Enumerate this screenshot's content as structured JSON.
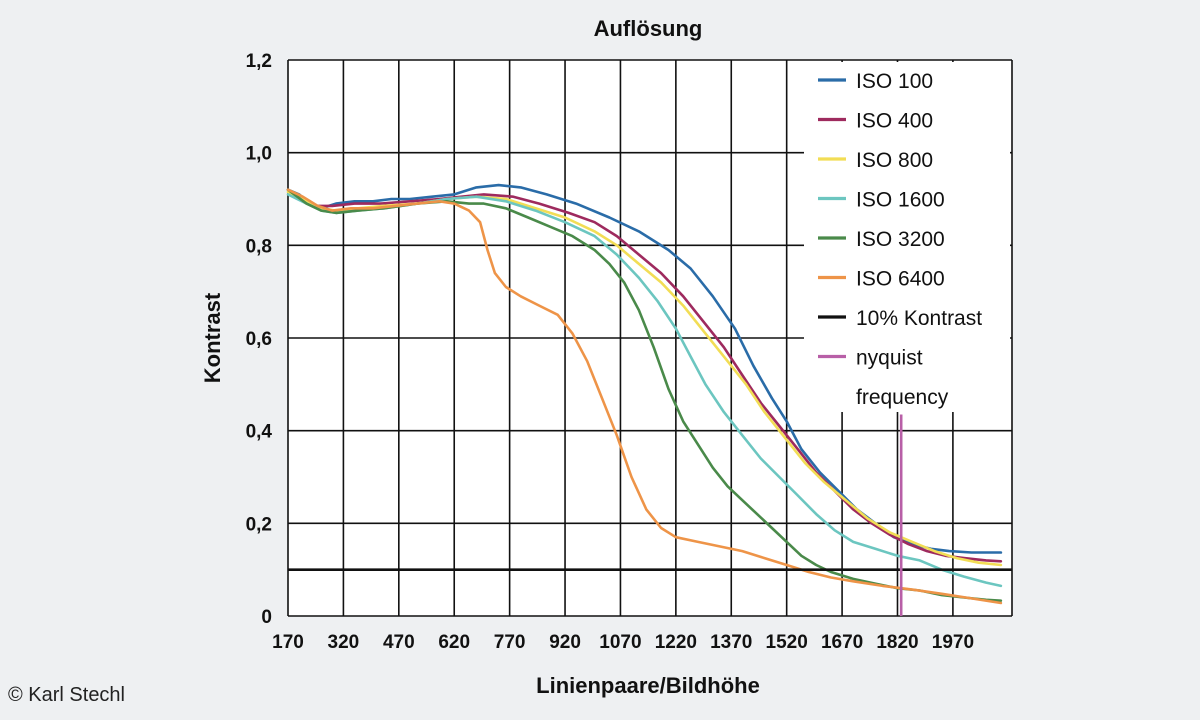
{
  "chart_data": {
    "type": "line",
    "title": "Auflösung",
    "xlabel": "Linienpaare/Bildhöhe",
    "ylabel": "Kontrast",
    "xlim": [
      170,
      2130
    ],
    "ylim": [
      0,
      1.2
    ],
    "x_ticks": [
      "170",
      "320",
      "470",
      "620",
      "770",
      "920",
      "1070",
      "1220",
      "1370",
      "1520",
      "1670",
      "1820",
      "1970"
    ],
    "y_ticks": [
      "0",
      "0,2",
      "0,4",
      "0,6",
      "0,8",
      "1,0",
      "1,2"
    ],
    "grid": true,
    "legend_position": "top-right",
    "series": [
      {
        "name": "ISO 100",
        "color": "#2a6ca8",
        "points": [
          [
            170,
            0.92
          ],
          [
            200,
            0.91
          ],
          [
            230,
            0.89
          ],
          [
            260,
            0.88
          ],
          [
            300,
            0.89
          ],
          [
            350,
            0.895
          ],
          [
            400,
            0.895
          ],
          [
            450,
            0.9
          ],
          [
            500,
            0.9
          ],
          [
            560,
            0.905
          ],
          [
            620,
            0.91
          ],
          [
            680,
            0.925
          ],
          [
            740,
            0.93
          ],
          [
            800,
            0.925
          ],
          [
            870,
            0.91
          ],
          [
            950,
            0.89
          ],
          [
            1040,
            0.86
          ],
          [
            1120,
            0.83
          ],
          [
            1200,
            0.79
          ],
          [
            1260,
            0.75
          ],
          [
            1320,
            0.69
          ],
          [
            1380,
            0.62
          ],
          [
            1430,
            0.54
          ],
          [
            1480,
            0.47
          ],
          [
            1520,
            0.42
          ],
          [
            1560,
            0.36
          ],
          [
            1610,
            0.31
          ],
          [
            1660,
            0.27
          ],
          [
            1710,
            0.23
          ],
          [
            1760,
            0.2
          ],
          [
            1810,
            0.17
          ],
          [
            1860,
            0.155
          ],
          [
            1910,
            0.145
          ],
          [
            1960,
            0.14
          ],
          [
            2020,
            0.137
          ],
          [
            2100,
            0.137
          ]
        ]
      },
      {
        "name": "ISO 400",
        "color": "#9e2a5e",
        "points": [
          [
            170,
            0.92
          ],
          [
            210,
            0.9
          ],
          [
            250,
            0.885
          ],
          [
            290,
            0.885
          ],
          [
            350,
            0.89
          ],
          [
            420,
            0.89
          ],
          [
            500,
            0.895
          ],
          [
            580,
            0.9
          ],
          [
            640,
            0.905
          ],
          [
            700,
            0.91
          ],
          [
            780,
            0.905
          ],
          [
            850,
            0.89
          ],
          [
            930,
            0.87
          ],
          [
            1000,
            0.85
          ],
          [
            1060,
            0.82
          ],
          [
            1120,
            0.78
          ],
          [
            1180,
            0.74
          ],
          [
            1240,
            0.69
          ],
          [
            1300,
            0.63
          ],
          [
            1350,
            0.58
          ],
          [
            1400,
            0.52
          ],
          [
            1450,
            0.46
          ],
          [
            1500,
            0.41
          ],
          [
            1550,
            0.36
          ],
          [
            1600,
            0.31
          ],
          [
            1650,
            0.27
          ],
          [
            1700,
            0.23
          ],
          [
            1750,
            0.2
          ],
          [
            1800,
            0.175
          ],
          [
            1850,
            0.155
          ],
          [
            1900,
            0.14
          ],
          [
            1950,
            0.13
          ],
          [
            2000,
            0.125
          ],
          [
            2060,
            0.12
          ],
          [
            2100,
            0.118
          ]
        ]
      },
      {
        "name": "ISO 800",
        "color": "#f2dd55",
        "points": [
          [
            170,
            0.915
          ],
          [
            220,
            0.895
          ],
          [
            260,
            0.88
          ],
          [
            300,
            0.875
          ],
          [
            360,
            0.88
          ],
          [
            430,
            0.885
          ],
          [
            520,
            0.89
          ],
          [
            600,
            0.9
          ],
          [
            680,
            0.905
          ],
          [
            760,
            0.9
          ],
          [
            840,
            0.88
          ],
          [
            920,
            0.86
          ],
          [
            1000,
            0.83
          ],
          [
            1060,
            0.8
          ],
          [
            1120,
            0.76
          ],
          [
            1180,
            0.72
          ],
          [
            1240,
            0.67
          ],
          [
            1300,
            0.61
          ],
          [
            1360,
            0.55
          ],
          [
            1410,
            0.5
          ],
          [
            1460,
            0.44
          ],
          [
            1520,
            0.38
          ],
          [
            1570,
            0.33
          ],
          [
            1620,
            0.29
          ],
          [
            1680,
            0.25
          ],
          [
            1740,
            0.21
          ],
          [
            1800,
            0.18
          ],
          [
            1860,
            0.16
          ],
          [
            1920,
            0.14
          ],
          [
            1980,
            0.125
          ],
          [
            2040,
            0.115
          ],
          [
            2100,
            0.11
          ]
        ]
      },
      {
        "name": "ISO 1600",
        "color": "#6cc6c0",
        "points": [
          [
            170,
            0.91
          ],
          [
            220,
            0.89
          ],
          [
            260,
            0.875
          ],
          [
            300,
            0.87
          ],
          [
            360,
            0.875
          ],
          [
            430,
            0.88
          ],
          [
            520,
            0.89
          ],
          [
            600,
            0.9
          ],
          [
            680,
            0.905
          ],
          [
            760,
            0.895
          ],
          [
            840,
            0.875
          ],
          [
            920,
            0.85
          ],
          [
            1000,
            0.82
          ],
          [
            1060,
            0.78
          ],
          [
            1120,
            0.73
          ],
          [
            1170,
            0.68
          ],
          [
            1220,
            0.62
          ],
          [
            1260,
            0.56
          ],
          [
            1300,
            0.5
          ],
          [
            1350,
            0.44
          ],
          [
            1400,
            0.39
          ],
          [
            1450,
            0.34
          ],
          [
            1500,
            0.3
          ],
          [
            1550,
            0.26
          ],
          [
            1600,
            0.22
          ],
          [
            1650,
            0.185
          ],
          [
            1700,
            0.16
          ],
          [
            1760,
            0.145
          ],
          [
            1820,
            0.13
          ],
          [
            1880,
            0.12
          ],
          [
            1940,
            0.1
          ],
          [
            2000,
            0.085
          ],
          [
            2060,
            0.072
          ],
          [
            2100,
            0.065
          ]
        ]
      },
      {
        "name": "ISO 3200",
        "color": "#4a8a4a",
        "points": [
          [
            170,
            0.92
          ],
          [
            220,
            0.89
          ],
          [
            260,
            0.875
          ],
          [
            300,
            0.87
          ],
          [
            360,
            0.875
          ],
          [
            430,
            0.88
          ],
          [
            520,
            0.89
          ],
          [
            600,
            0.895
          ],
          [
            660,
            0.89
          ],
          [
            700,
            0.89
          ],
          [
            760,
            0.88
          ],
          [
            820,
            0.86
          ],
          [
            880,
            0.84
          ],
          [
            940,
            0.82
          ],
          [
            1000,
            0.79
          ],
          [
            1040,
            0.76
          ],
          [
            1080,
            0.72
          ],
          [
            1120,
            0.66
          ],
          [
            1160,
            0.58
          ],
          [
            1200,
            0.49
          ],
          [
            1240,
            0.42
          ],
          [
            1280,
            0.37
          ],
          [
            1320,
            0.32
          ],
          [
            1360,
            0.28
          ],
          [
            1400,
            0.25
          ],
          [
            1440,
            0.22
          ],
          [
            1480,
            0.19
          ],
          [
            1520,
            0.16
          ],
          [
            1560,
            0.13
          ],
          [
            1600,
            0.11
          ],
          [
            1640,
            0.095
          ],
          [
            1700,
            0.08
          ],
          [
            1760,
            0.07
          ],
          [
            1820,
            0.06
          ],
          [
            1880,
            0.055
          ],
          [
            1940,
            0.045
          ],
          [
            2000,
            0.04
          ],
          [
            2060,
            0.035
          ],
          [
            2100,
            0.033
          ]
        ]
      },
      {
        "name": "ISO 6400",
        "color": "#ee9448",
        "points": [
          [
            170,
            0.92
          ],
          [
            210,
            0.905
          ],
          [
            250,
            0.885
          ],
          [
            290,
            0.875
          ],
          [
            340,
            0.88
          ],
          [
            400,
            0.88
          ],
          [
            460,
            0.885
          ],
          [
            520,
            0.89
          ],
          [
            580,
            0.895
          ],
          [
            620,
            0.89
          ],
          [
            660,
            0.875
          ],
          [
            690,
            0.85
          ],
          [
            710,
            0.79
          ],
          [
            730,
            0.74
          ],
          [
            760,
            0.71
          ],
          [
            800,
            0.69
          ],
          [
            850,
            0.67
          ],
          [
            900,
            0.65
          ],
          [
            940,
            0.61
          ],
          [
            980,
            0.55
          ],
          [
            1020,
            0.47
          ],
          [
            1060,
            0.39
          ],
          [
            1100,
            0.3
          ],
          [
            1140,
            0.23
          ],
          [
            1180,
            0.19
          ],
          [
            1220,
            0.17
          ],
          [
            1280,
            0.16
          ],
          [
            1340,
            0.15
          ],
          [
            1400,
            0.14
          ],
          [
            1460,
            0.125
          ],
          [
            1520,
            0.11
          ],
          [
            1580,
            0.095
          ],
          [
            1640,
            0.083
          ],
          [
            1700,
            0.075
          ],
          [
            1780,
            0.065
          ],
          [
            1860,
            0.057
          ],
          [
            1940,
            0.048
          ],
          [
            2020,
            0.038
          ],
          [
            2100,
            0.028
          ]
        ]
      }
    ],
    "reference_lines": [
      {
        "name": "10% Kontrast",
        "color": "#111111",
        "orientation": "horizontal",
        "value": 0.1
      },
      {
        "name": "nyquist frequency",
        "color": "#b85fa7",
        "orientation": "vertical",
        "value": 1830,
        "range": [
          0,
          0.435
        ]
      }
    ],
    "legend_entries": [
      {
        "label": "ISO 100",
        "color": "#2a6ca8"
      },
      {
        "label": "ISO 400",
        "color": "#9e2a5e"
      },
      {
        "label": "ISO 800",
        "color": "#f2dd55"
      },
      {
        "label": "ISO 1600",
        "color": "#6cc6c0"
      },
      {
        "label": "ISO 3200",
        "color": "#4a8a4a"
      },
      {
        "label": "ISO 6400",
        "color": "#ee9448"
      },
      {
        "label": "10% Kontrast",
        "color": "#111111"
      },
      {
        "label": "nyquist",
        "color": "#b85fa7"
      },
      {
        "label": "frequency",
        "color": ""
      }
    ]
  },
  "credit": "© Karl Stechl"
}
